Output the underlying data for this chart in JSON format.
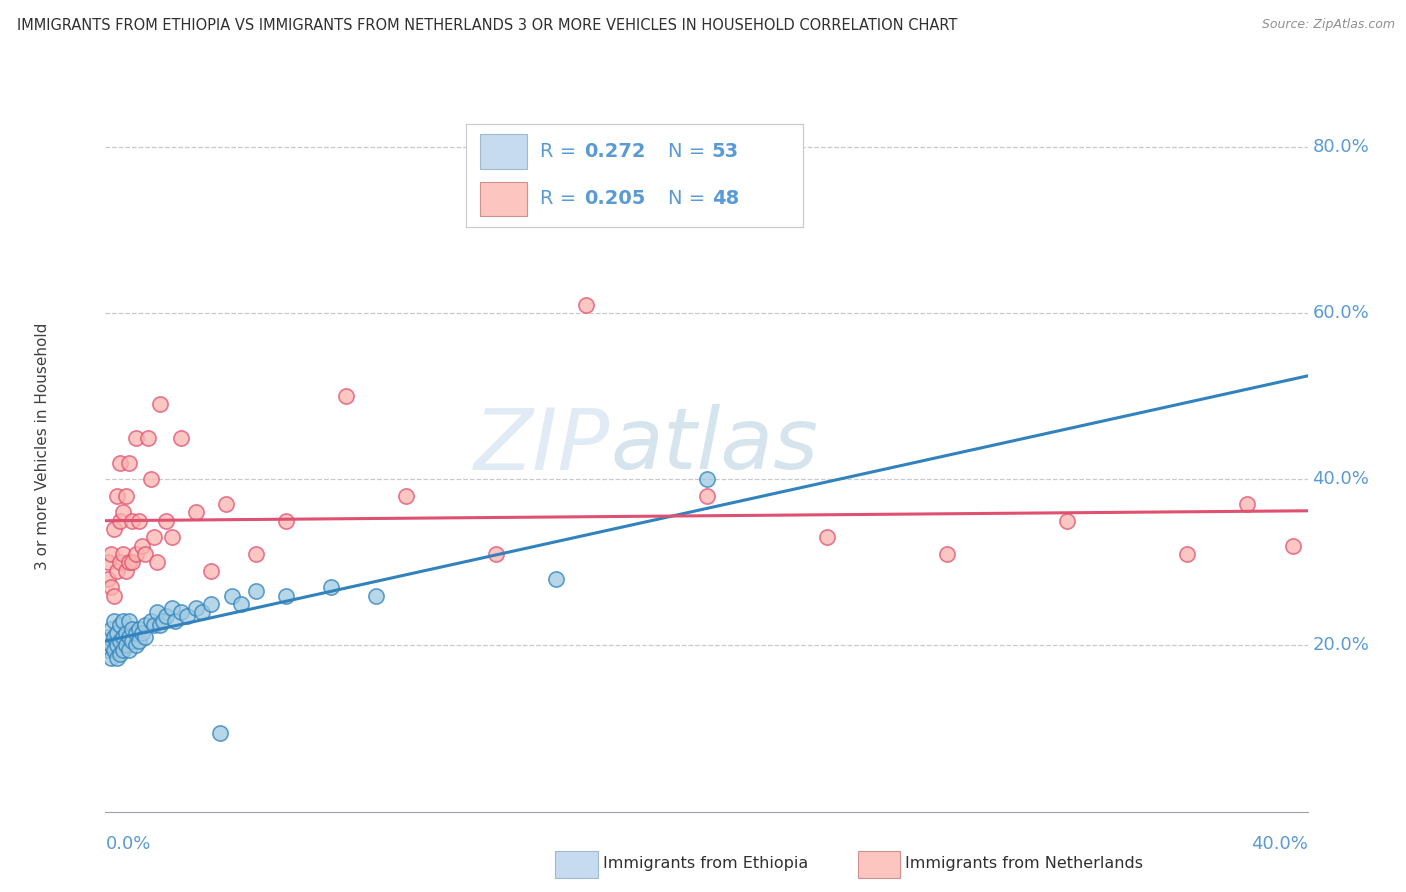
{
  "title": "IMMIGRANTS FROM ETHIOPIA VS IMMIGRANTS FROM NETHERLANDS 3 OR MORE VEHICLES IN HOUSEHOLD CORRELATION CHART",
  "source": "Source: ZipAtlas.com",
  "ylabel": "3 or more Vehicles in Household",
  "y_ticks": [
    0.2,
    0.4,
    0.6,
    0.8
  ],
  "y_tick_labels": [
    "20.0%",
    "40.0%",
    "60.0%",
    "80.0%"
  ],
  "xlim": [
    0.0,
    0.4
  ],
  "ylim": [
    0.0,
    0.88
  ],
  "watermark_zip": "ZIP",
  "watermark_atlas": "atlas",
  "legend_r_ethiopia": "0.272",
  "legend_n_ethiopia": "53",
  "legend_r_netherlands": "0.205",
  "legend_n_netherlands": "48",
  "color_ethiopia": "#9ecae1",
  "color_netherlands": "#fbb4ae",
  "line_color_ethiopia": "#3182bd",
  "line_color_netherlands": "#e05070",
  "legend_box_color_ethiopia": "#c6dbef",
  "legend_box_color_netherlands": "#fcc5c0",
  "bottom_label_ethiopia": "Immigrants from Ethiopia",
  "bottom_label_netherlands": "Immigrants from Netherlands",
  "ethiopia_x": [
    0.001,
    0.001,
    0.002,
    0.002,
    0.002,
    0.003,
    0.003,
    0.003,
    0.004,
    0.004,
    0.004,
    0.005,
    0.005,
    0.005,
    0.006,
    0.006,
    0.006,
    0.007,
    0.007,
    0.008,
    0.008,
    0.008,
    0.009,
    0.009,
    0.01,
    0.01,
    0.011,
    0.011,
    0.012,
    0.013,
    0.013,
    0.015,
    0.016,
    0.017,
    0.018,
    0.019,
    0.02,
    0.022,
    0.023,
    0.025,
    0.027,
    0.03,
    0.032,
    0.035,
    0.038,
    0.042,
    0.045,
    0.05,
    0.06,
    0.075,
    0.09,
    0.15,
    0.2
  ],
  "ethiopia_y": [
    0.195,
    0.21,
    0.185,
    0.2,
    0.22,
    0.195,
    0.21,
    0.23,
    0.185,
    0.2,
    0.215,
    0.19,
    0.205,
    0.225,
    0.195,
    0.21,
    0.23,
    0.2,
    0.215,
    0.195,
    0.21,
    0.23,
    0.205,
    0.22,
    0.2,
    0.215,
    0.205,
    0.22,
    0.215,
    0.21,
    0.225,
    0.23,
    0.225,
    0.24,
    0.225,
    0.23,
    0.235,
    0.245,
    0.23,
    0.24,
    0.235,
    0.245,
    0.24,
    0.25,
    0.095,
    0.26,
    0.25,
    0.265,
    0.26,
    0.27,
    0.26,
    0.28,
    0.4
  ],
  "netherlands_x": [
    0.001,
    0.001,
    0.002,
    0.002,
    0.003,
    0.003,
    0.004,
    0.004,
    0.005,
    0.005,
    0.005,
    0.006,
    0.006,
    0.007,
    0.007,
    0.008,
    0.008,
    0.009,
    0.009,
    0.01,
    0.01,
    0.011,
    0.012,
    0.013,
    0.014,
    0.015,
    0.016,
    0.017,
    0.018,
    0.02,
    0.022,
    0.025,
    0.03,
    0.035,
    0.04,
    0.05,
    0.06,
    0.08,
    0.1,
    0.13,
    0.16,
    0.2,
    0.24,
    0.28,
    0.32,
    0.36,
    0.38,
    0.395
  ],
  "netherlands_y": [
    0.28,
    0.3,
    0.27,
    0.31,
    0.26,
    0.34,
    0.29,
    0.38,
    0.3,
    0.35,
    0.42,
    0.31,
    0.36,
    0.29,
    0.38,
    0.3,
    0.42,
    0.35,
    0.3,
    0.31,
    0.45,
    0.35,
    0.32,
    0.31,
    0.45,
    0.4,
    0.33,
    0.3,
    0.49,
    0.35,
    0.33,
    0.45,
    0.36,
    0.29,
    0.37,
    0.31,
    0.35,
    0.5,
    0.38,
    0.31,
    0.61,
    0.38,
    0.33,
    0.31,
    0.35,
    0.31,
    0.37,
    0.32
  ]
}
